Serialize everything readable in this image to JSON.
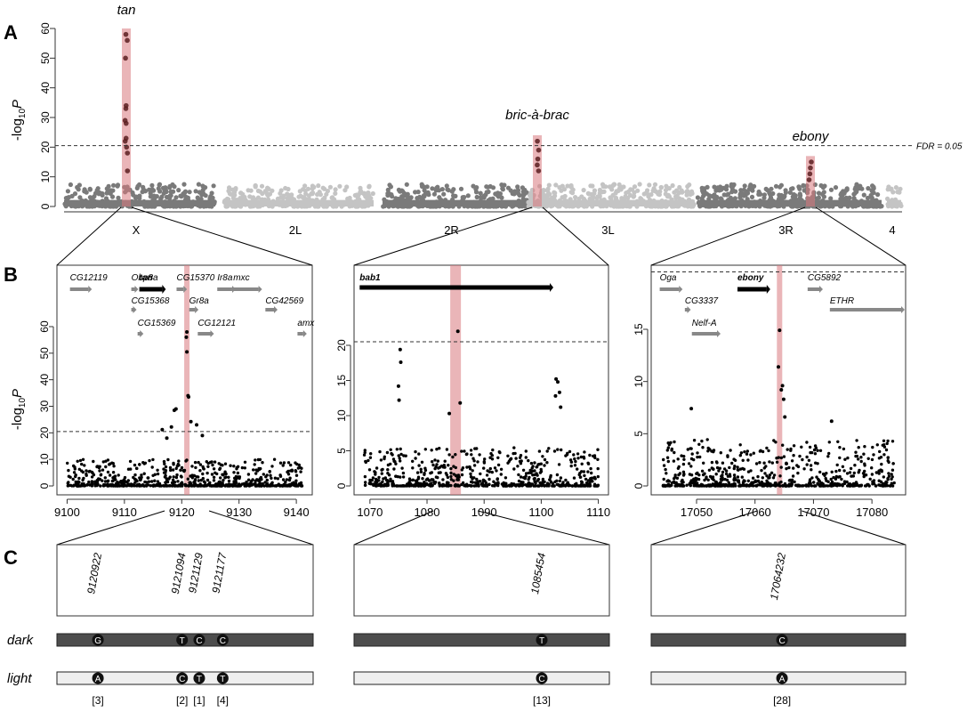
{
  "panels": {
    "A": "A",
    "B": "B",
    "C": "C"
  },
  "axis_ylabel_parts": {
    "prefix": "-log",
    "sub": "10",
    "var": "P"
  },
  "chart_data": [
    {
      "type": "scatter",
      "id": "manhattan",
      "chromosomes": [
        "X",
        "2L",
        "2R",
        "3L",
        "3R",
        "4"
      ],
      "ylim": [
        0,
        60
      ],
      "yticks": [
        "0",
        "10",
        "20",
        "30",
        "40",
        "50",
        "60"
      ],
      "threshold": 20.5,
      "threshold_label": "FDR = 0.05",
      "peaks": [
        {
          "name": "tan",
          "chrom": "X",
          "top_values": [
            58,
            56,
            50,
            34,
            33,
            29,
            28,
            23,
            22,
            20,
            18,
            12
          ]
        },
        {
          "name": "bric-à-brac",
          "chrom": "2R",
          "top_values": [
            22,
            19,
            16,
            14,
            12
          ]
        },
        {
          "name": "ebony",
          "chrom": "3R",
          "top_values": [
            15,
            13,
            11,
            9
          ]
        }
      ]
    },
    {
      "type": "scatter",
      "id": "zoom-X",
      "xticks": [
        "9100",
        "9110",
        "9120",
        "9130",
        "9140"
      ],
      "xlim": [
        9099,
        9142
      ],
      "ylim": [
        0,
        70
      ],
      "yticks": [
        "0",
        "10",
        "20",
        "30",
        "40",
        "50",
        "60"
      ],
      "threshold": 20.5,
      "highlight_x": 9120.9,
      "top_points": [
        [
          9120.9,
          58
        ],
        [
          9120.8,
          56
        ],
        [
          9120.9,
          50.5
        ],
        [
          9121.1,
          34
        ],
        [
          9121.2,
          33.5
        ],
        [
          9119.0,
          29
        ],
        [
          9118.7,
          28.5
        ],
        [
          9116.6,
          21.2
        ],
        [
          9118.2,
          22.2
        ],
        [
          9121.6,
          24.2
        ],
        [
          9122.6,
          23
        ],
        [
          9123.6,
          19
        ],
        [
          9117.4,
          18
        ]
      ],
      "genes": [
        {
          "name": "CG12119",
          "start": 9100.5,
          "end": 9103.7,
          "row": 0
        },
        {
          "name": "Obp8a",
          "start": 9111.2,
          "end": 9111.8,
          "row": 0
        },
        {
          "name": "tan",
          "start": 9112.6,
          "end": 9116.6,
          "row": 0,
          "bold": true
        },
        {
          "name": "CG15370",
          "start": 9119.1,
          "end": 9120.3,
          "row": 0
        },
        {
          "name": "Ir8a",
          "start": 9126.2,
          "end": 9128.8,
          "row": 0
        },
        {
          "name": "mxc",
          "start": 9129.0,
          "end": 9133.4,
          "row": 0
        },
        {
          "name": "CG15368",
          "start": 9111.2,
          "end": 9111.5,
          "row": 1
        },
        {
          "name": "Gr8a",
          "start": 9121.3,
          "end": 9122.3,
          "row": 1
        },
        {
          "name": "CG42569",
          "start": 9134.6,
          "end": 9136.1,
          "row": 1
        },
        {
          "name": "CG15369",
          "start": 9112.3,
          "end": 9112.7,
          "row": 2
        },
        {
          "name": "CG12121",
          "start": 9122.8,
          "end": 9125.0,
          "row": 2
        },
        {
          "name": "amx",
          "start": 9140.2,
          "end": 9141.2,
          "row": 2
        }
      ]
    },
    {
      "type": "scatter",
      "id": "zoom-2R",
      "xticks": [
        "1070",
        "1080",
        "1090",
        "1100",
        "1110"
      ],
      "xlim": [
        1068,
        1111
      ],
      "ylim": [
        0,
        25
      ],
      "yticks": [
        "0",
        "5",
        "10",
        "15",
        "20"
      ],
      "threshold": 20.5,
      "highlight_x": 1085,
      "top_points": [
        [
          1085.4,
          22
        ],
        [
          1075.3,
          19.4
        ],
        [
          1075.4,
          17.6
        ],
        [
          1075.0,
          14.2
        ],
        [
          1075.1,
          12.2
        ],
        [
          1085.8,
          11.8
        ],
        [
          1083.9,
          10.3
        ],
        [
          1102.6,
          15.2
        ],
        [
          1102.9,
          14.8
        ],
        [
          1103.2,
          13.3
        ],
        [
          1102.5,
          12.8
        ],
        [
          1103.4,
          11.2
        ]
      ],
      "genes": [
        {
          "name": "bab1",
          "start": 1068.2,
          "end": 1101.5,
          "row": 0,
          "bold": true
        }
      ]
    },
    {
      "type": "scatter",
      "id": "zoom-3R",
      "xticks": [
        "17050",
        "17060",
        "17070",
        "17080"
      ],
      "xlim": [
        17043,
        17085
      ],
      "ylim": [
        0,
        20
      ],
      "yticks": [
        "0",
        "5",
        "10",
        "15"
      ],
      "threshold": 20.5,
      "highlight_x": 17064.2,
      "top_points": [
        [
          17064.2,
          14.9
        ],
        [
          17064.0,
          11.4
        ],
        [
          17064.7,
          9.6
        ],
        [
          17064.5,
          9.2
        ],
        [
          17064.9,
          8.3
        ],
        [
          17049.1,
          7.4
        ],
        [
          17065.1,
          6.6
        ],
        [
          17073.1,
          6.2
        ]
      ],
      "genes": [
        {
          "name": "Oga",
          "start": 17043.7,
          "end": 17047.0,
          "row": 0
        },
        {
          "name": "ebony",
          "start": 17057.0,
          "end": 17062.0,
          "row": 0,
          "bold": true
        },
        {
          "name": "CG5892",
          "start": 17069.0,
          "end": 17071.0,
          "row": 0
        },
        {
          "name": "CG3337",
          "start": 17048.0,
          "end": 17048.4,
          "row": 1
        },
        {
          "name": "ETHR",
          "start": 17072.8,
          "end": 17085.0,
          "row": 1
        },
        {
          "name": "Nelf-A",
          "start": 17049.2,
          "end": 17053.5,
          "row": 2
        }
      ]
    }
  ],
  "snp_panels": [
    {
      "positions": [
        "9120922",
        "9121094",
        "9121129",
        "9121177"
      ],
      "dark": [
        "G",
        "T",
        "C",
        "C"
      ],
      "light": [
        "A",
        "C",
        "T",
        "T"
      ],
      "counts": [
        "[3]",
        "[2]",
        "[1]",
        "[4]"
      ]
    },
    {
      "positions": [
        "1085454"
      ],
      "dark": [
        "T"
      ],
      "light": [
        "C"
      ],
      "counts": [
        "[13]"
      ]
    },
    {
      "positions": [
        "17064232"
      ],
      "dark": [
        "C"
      ],
      "light": [
        "A"
      ],
      "counts": [
        "[28]"
      ]
    }
  ],
  "rows": {
    "dark": "dark",
    "light": "light"
  },
  "colors": {
    "chrom_dark": "#7a7a7a",
    "chrom_light": "#c4c4c4",
    "highlight": "#d9797e",
    "snp_dark": "#4d4d4d",
    "snp_light": "#efefef",
    "gene": "#888888"
  }
}
